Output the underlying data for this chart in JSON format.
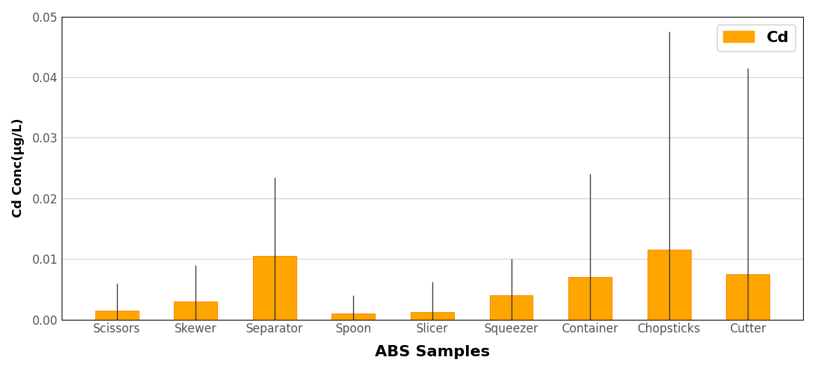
{
  "categories": [
    "Scissors",
    "Skewer",
    "Separator",
    "Spoon",
    "Slicer",
    "Squeezer",
    "Container",
    "Chopsticks",
    "Cutter"
  ],
  "values": [
    0.0015,
    0.003,
    0.0105,
    0.001,
    0.0012,
    0.004,
    0.007,
    0.0115,
    0.0075
  ],
  "errors": [
    0.0045,
    0.006,
    0.013,
    0.003,
    0.005,
    0.006,
    0.017,
    0.036,
    0.034
  ],
  "bar_color": "#FFA500",
  "bar_edgecolor": "#FF8C00",
  "error_color": "#333333",
  "ylabel": "Cd Conc(μg/L)",
  "xlabel": "ABS Samples",
  "ylim": [
    0,
    0.05
  ],
  "yticks": [
    0.0,
    0.01,
    0.02,
    0.03,
    0.04,
    0.05
  ],
  "legend_label": "Cd",
  "legend_fontsize": 16,
  "bar_width": 0.55,
  "grid_color": "#d0d0d0",
  "grid_linewidth": 0.8,
  "xlabel_fontsize": 16,
  "ylabel_fontsize": 13,
  "tick_fontsize": 12,
  "background_color": "#ffffff",
  "plot_background": "#ffffff",
  "spine_color": "#000000"
}
